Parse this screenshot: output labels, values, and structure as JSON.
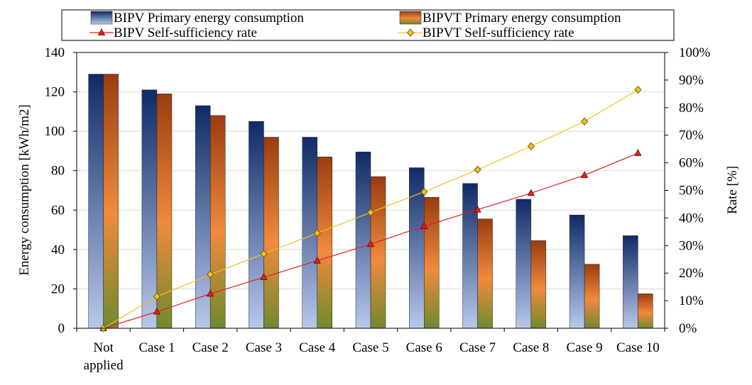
{
  "chart_data": {
    "type": "bar",
    "categories": [
      "Not applied",
      "Case 1",
      "Case 2",
      "Case 3",
      "Case 4",
      "Case 5",
      "Case 6",
      "Case 7",
      "Case 8",
      "Case 9",
      "Case 10"
    ],
    "category_lines": [
      [
        "Not",
        "applied"
      ],
      [
        "Case 1"
      ],
      [
        "Case 2"
      ],
      [
        "Case 3"
      ],
      [
        "Case 4"
      ],
      [
        "Case 5"
      ],
      [
        "Case 6"
      ],
      [
        "Case 7"
      ],
      [
        "Case 8"
      ],
      [
        "Case 9"
      ],
      [
        "Case 10"
      ]
    ],
    "series": [
      {
        "name": "BIPV Primary energy consumption",
        "kind": "bar",
        "axis": "left",
        "values": [
          129,
          121,
          113,
          105,
          97,
          89.5,
          81.5,
          73.5,
          65.5,
          57.5,
          47
        ],
        "gradient": [
          "#0f2a66",
          "#b8c8ec"
        ]
      },
      {
        "name": "BIPVT Primary energy consumption",
        "kind": "bar",
        "axis": "left",
        "values": [
          129,
          119,
          108,
          97,
          87,
          77,
          66.5,
          55.5,
          44.5,
          32.5,
          17.5
        ],
        "gradient": [
          "#9a3c10",
          "#f08a3c",
          "#6f8a2e"
        ]
      },
      {
        "name": "BIPV Self-sufficiency rate",
        "kind": "line",
        "axis": "right",
        "values": [
          0,
          6,
          12.5,
          18.5,
          24.5,
          30.5,
          37,
          43,
          49,
          55.5,
          63.5
        ],
        "color": "#e02020",
        "marker": "triangle"
      },
      {
        "name": "BIPVT Self-sufficiency rate",
        "kind": "line",
        "axis": "right",
        "values": [
          0,
          11.5,
          19.5,
          27,
          34.5,
          42,
          49.5,
          57.5,
          66,
          75,
          86.5
        ],
        "color": "#f0c020",
        "marker": "diamond"
      }
    ],
    "y_left": {
      "label": "Energy consumption [kWh/m2]",
      "min": 0,
      "max": 140,
      "step": 20
    },
    "y_right": {
      "label": "Rate [%]",
      "min": 0,
      "max": 100,
      "step": 10,
      "suffix": "%"
    },
    "grid": true,
    "legend_position": "top"
  }
}
